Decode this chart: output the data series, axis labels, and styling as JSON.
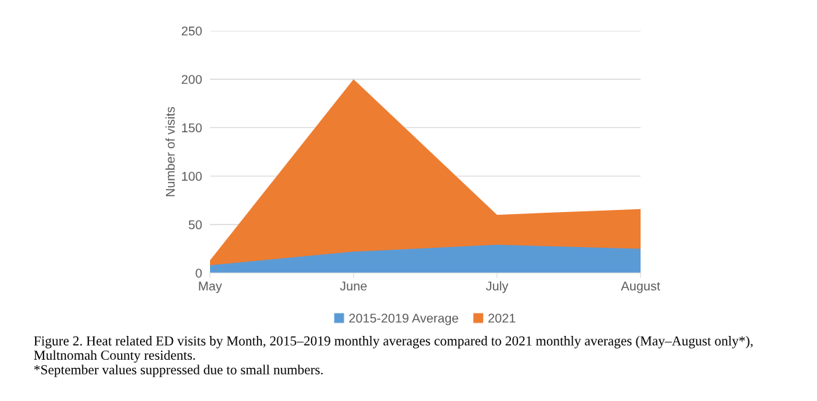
{
  "chart_data": {
    "type": "area",
    "ylabel": "Number of visits",
    "categories": [
      "May",
      "June",
      "July",
      "August"
    ],
    "series": [
      {
        "name": "2021",
        "color": "#ed7d31",
        "values": [
          13,
          200,
          60,
          66
        ]
      },
      {
        "name": "2015-2019 Average",
        "color": "#5b9bd5",
        "values": [
          8,
          22,
          29,
          25
        ]
      }
    ],
    "ylim": [
      0,
      250
    ],
    "yticks": [
      0,
      50,
      100,
      150,
      200,
      250
    ],
    "grid": "y",
    "legend": "bottom",
    "annotations": [
      "Figure 2. Heat related ED visits by Month, 2015–2019 monthly averages compared to 2021 monthly averages (May–August only*), Multnomah County residents.",
      "*September values suppressed due to small numbers."
    ]
  }
}
